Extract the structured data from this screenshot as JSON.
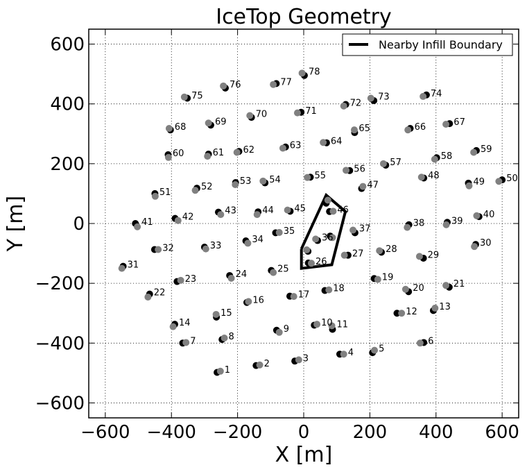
{
  "chart_data": {
    "type": "scatter",
    "title": "IceTop Geometry",
    "xlabel": "X [m]",
    "ylabel": "Y [m]",
    "xlim": [
      -650,
      650
    ],
    "ylim": [
      -650,
      650
    ],
    "xticks": [
      -600,
      -400,
      -200,
      0,
      200,
      400,
      600
    ],
    "yticks": [
      -600,
      -400,
      -200,
      0,
      200,
      400,
      600
    ],
    "xtick_labels": [
      "−600",
      "−400",
      "−200",
      "0",
      "200",
      "400",
      "600"
    ],
    "ytick_labels": [
      "−600",
      "−400",
      "−200",
      "0",
      "200",
      "400",
      "600"
    ],
    "grid": true,
    "legend": {
      "placement": "top-right",
      "entries": [
        "Nearby Infill Boundary"
      ]
    },
    "colors": {
      "tank_a": "#000000",
      "tank_b": "#808080",
      "boundary": "#000000"
    },
    "stations": [
      {
        "id": "1",
        "a": [
          -262,
          -498
        ],
        "b": [
          -252,
          -494
        ]
      },
      {
        "id": "2",
        "a": [
          -144,
          -475
        ],
        "b": [
          -133,
          -473
        ]
      },
      {
        "id": "3",
        "a": [
          -27,
          -460
        ],
        "b": [
          -15,
          -456
        ]
      },
      {
        "id": "4",
        "a": [
          109,
          -437
        ],
        "b": [
          121,
          -437
        ]
      },
      {
        "id": "5",
        "a": [
          208,
          -432
        ],
        "b": [
          214,
          -424
        ]
      },
      {
        "id": "6",
        "a": [
          363,
          -398
        ],
        "b": [
          352,
          -400
        ]
      },
      {
        "id": "7",
        "a": [
          -366,
          -400
        ],
        "b": [
          -356,
          -398
        ]
      },
      {
        "id": "8",
        "a": [
          -247,
          -388
        ],
        "b": [
          -240,
          -383
        ]
      },
      {
        "id": "9",
        "a": [
          -82,
          -357
        ],
        "b": [
          -74,
          -364
        ]
      },
      {
        "id": "10",
        "a": [
          32,
          -340
        ],
        "b": [
          40,
          -337
        ]
      },
      {
        "id": "11",
        "a": [
          87,
          -354
        ],
        "b": [
          85,
          -342
        ]
      },
      {
        "id": "12",
        "a": [
          282,
          -300
        ],
        "b": [
          296,
          -300
        ]
      },
      {
        "id": "13",
        "a": [
          392,
          -291
        ],
        "b": [
          397,
          -283
        ]
      },
      {
        "id": "14",
        "a": [
          -390,
          -337
        ],
        "b": [
          -395,
          -345
        ]
      },
      {
        "id": "15",
        "a": [
          -264,
          -313
        ],
        "b": [
          -265,
          -304
        ]
      },
      {
        "id": "16",
        "a": [
          -172,
          -264
        ],
        "b": [
          -167,
          -261
        ]
      },
      {
        "id": "17",
        "a": [
          -42,
          -243
        ],
        "b": [
          -30,
          -244
        ]
      },
      {
        "id": "18",
        "a": [
          64,
          -224
        ],
        "b": [
          76,
          -222
        ]
      },
      {
        "id": "19",
        "a": [
          213,
          -184
        ],
        "b": [
          224,
          -187
        ]
      },
      {
        "id": "20",
        "a": [
          317,
          -228
        ],
        "b": [
          308,
          -220
        ]
      },
      {
        "id": "21",
        "a": [
          440,
          -213
        ],
        "b": [
          430,
          -207
        ]
      },
      {
        "id": "22",
        "a": [
          -466,
          -236
        ],
        "b": [
          -471,
          -246
        ]
      },
      {
        "id": "23",
        "a": [
          -383,
          -194
        ],
        "b": [
          -372,
          -190
        ]
      },
      {
        "id": "24",
        "a": [
          -224,
          -174
        ],
        "b": [
          -219,
          -183
        ]
      },
      {
        "id": "25",
        "a": [
          -98,
          -157
        ],
        "b": [
          -92,
          -164
        ]
      },
      {
        "id": "26",
        "a": [
          14,
          -132
        ],
        "b": [
          23,
          -133
        ]
      },
      {
        "id": "27",
        "a": [
          134,
          -106
        ],
        "b": [
          123,
          -106
        ]
      },
      {
        "id": "28",
        "a": [
          235,
          -96
        ],
        "b": [
          229,
          -91
        ]
      },
      {
        "id": "29",
        "a": [
          362,
          -116
        ],
        "b": [
          350,
          -110
        ]
      },
      {
        "id": "30",
        "a": [
          520,
          -70
        ],
        "b": [
          516,
          -77
        ]
      },
      {
        "id": "31",
        "a": [
          -546,
          -143
        ],
        "b": [
          -550,
          -150
        ]
      },
      {
        "id": "32",
        "a": [
          -451,
          -87
        ],
        "b": [
          -440,
          -87
        ]
      },
      {
        "id": "33",
        "a": [
          -300,
          -79
        ],
        "b": [
          -296,
          -85
        ]
      },
      {
        "id": "34",
        "a": [
          -175,
          -58
        ],
        "b": [
          -169,
          -66
        ]
      },
      {
        "id": "35",
        "a": [
          -85,
          -31
        ],
        "b": [
          -74,
          -30
        ]
      },
      {
        "id": "36",
        "a": [
          42,
          -57
        ],
        "b": [
          36,
          -52
        ]
      },
      {
        "id": "37",
        "a": [
          155,
          -31
        ],
        "b": [
          149,
          -22
        ]
      },
      {
        "id": "38",
        "a": [
          318,
          -4
        ],
        "b": [
          313,
          -13
        ]
      },
      {
        "id": "39",
        "a": [
          434,
          4
        ],
        "b": [
          431,
          -4
        ]
      },
      {
        "id": "40",
        "a": [
          530,
          23
        ],
        "b": [
          523,
          26
        ]
      },
      {
        "id": "41",
        "a": [
          -509,
          0
        ],
        "b": [
          -503,
          -11
        ]
      },
      {
        "id": "42",
        "a": [
          -389,
          17
        ],
        "b": [
          -380,
          10
        ]
      },
      {
        "id": "43",
        "a": [
          -258,
          38
        ],
        "b": [
          -251,
          30
        ]
      },
      {
        "id": "44",
        "a": [
          -138,
          39
        ],
        "b": [
          -141,
          30
        ]
      },
      {
        "id": "45",
        "a": [
          -41,
          41
        ],
        "b": [
          -49,
          45
        ]
      },
      {
        "id": "46",
        "a": [
          78,
          40
        ],
        "b": [
          89,
          41
        ]
      },
      {
        "id": "47",
        "a": [
          175,
          117
        ],
        "b": [
          179,
          124
        ]
      },
      {
        "id": "48",
        "a": [
          363,
          152
        ],
        "b": [
          356,
          155
        ]
      },
      {
        "id": "49",
        "a": [
          498,
          135
        ],
        "b": [
          500,
          126
        ]
      },
      {
        "id": "50",
        "a": [
          600,
          146
        ],
        "b": [
          590,
          141
        ]
      },
      {
        "id": "51",
        "a": [
          -450,
          100
        ],
        "b": [
          -449,
          91
        ]
      },
      {
        "id": "52",
        "a": [
          -323,
          118
        ],
        "b": [
          -328,
          111
        ]
      },
      {
        "id": "53",
        "a": [
          -206,
          137
        ],
        "b": [
          -207,
          130
        ]
      },
      {
        "id": "54",
        "a": [
          -117,
          136
        ],
        "b": [
          -123,
          142
        ]
      },
      {
        "id": "55",
        "a": [
          20,
          155
        ],
        "b": [
          11,
          154
        ]
      },
      {
        "id": "56",
        "a": [
          139,
          177
        ],
        "b": [
          128,
          178
        ]
      },
      {
        "id": "57",
        "a": [
          248,
          195
        ],
        "b": [
          241,
          200
        ]
      },
      {
        "id": "58",
        "a": [
          402,
          220
        ],
        "b": [
          396,
          215
        ]
      },
      {
        "id": "59",
        "a": [
          522,
          244
        ],
        "b": [
          514,
          238
        ]
      },
      {
        "id": "60",
        "a": [
          -410,
          230
        ],
        "b": [
          -409,
          221
        ]
      },
      {
        "id": "61",
        "a": [
          -288,
          232
        ],
        "b": [
          -291,
          225
        ]
      },
      {
        "id": "62",
        "a": [
          -196,
          241
        ],
        "b": [
          -202,
          238
        ]
      },
      {
        "id": "63",
        "a": [
          -55,
          256
        ],
        "b": [
          -63,
          252
        ]
      },
      {
        "id": "64",
        "a": [
          69,
          270
        ],
        "b": [
          59,
          271
        ]
      },
      {
        "id": "65",
        "a": [
          154,
          304
        ],
        "b": [
          153,
          313
        ]
      },
      {
        "id": "66",
        "a": [
          322,
          318
        ],
        "b": [
          315,
          313
        ]
      },
      {
        "id": "67",
        "a": [
          441,
          334
        ],
        "b": [
          430,
          332
        ]
      },
      {
        "id": "68",
        "a": [
          -403,
          313
        ],
        "b": [
          -407,
          318
        ]
      },
      {
        "id": "69",
        "a": [
          -281,
          329
        ],
        "b": [
          -288,
          336
        ]
      },
      {
        "id": "70",
        "a": [
          -158,
          355
        ],
        "b": [
          -163,
          361
        ]
      },
      {
        "id": "71",
        "a": [
          -8,
          372
        ],
        "b": [
          -19,
          370
        ]
      },
      {
        "id": "72",
        "a": [
          127,
          398
        ],
        "b": [
          121,
          393
        ]
      },
      {
        "id": "73",
        "a": [
          212,
          411
        ],
        "b": [
          203,
          419
        ]
      },
      {
        "id": "74",
        "a": [
          371,
          430
        ],
        "b": [
          361,
          425
        ]
      },
      {
        "id": "75",
        "a": [
          -352,
          419
        ],
        "b": [
          -361,
          423
        ]
      },
      {
        "id": "76",
        "a": [
          -237,
          453
        ],
        "b": [
          -243,
          460
        ]
      },
      {
        "id": "77",
        "a": [
          -83,
          468
        ],
        "b": [
          -92,
          465
        ]
      },
      {
        "id": "78",
        "a": [
          2,
          495
        ],
        "b": [
          -5,
          503
        ]
      },
      {
        "id": "79",
        "a": [
          68,
          68
        ],
        "b": [
          73,
          78
        ]
      },
      {
        "id": "80",
        "a": [
          13,
          -93
        ],
        "b": [
          9,
          -88
        ]
      },
      {
        "id": "81",
        "a": [
          80,
          -42
        ],
        "b": [
          87,
          -47
        ]
      }
    ],
    "boundary": [
      [
        -7,
        -85
      ],
      [
        68,
        95
      ],
      [
        126,
        40
      ],
      [
        85,
        -138
      ],
      [
        -7,
        -150
      ],
      [
        -7,
        -85
      ]
    ]
  }
}
